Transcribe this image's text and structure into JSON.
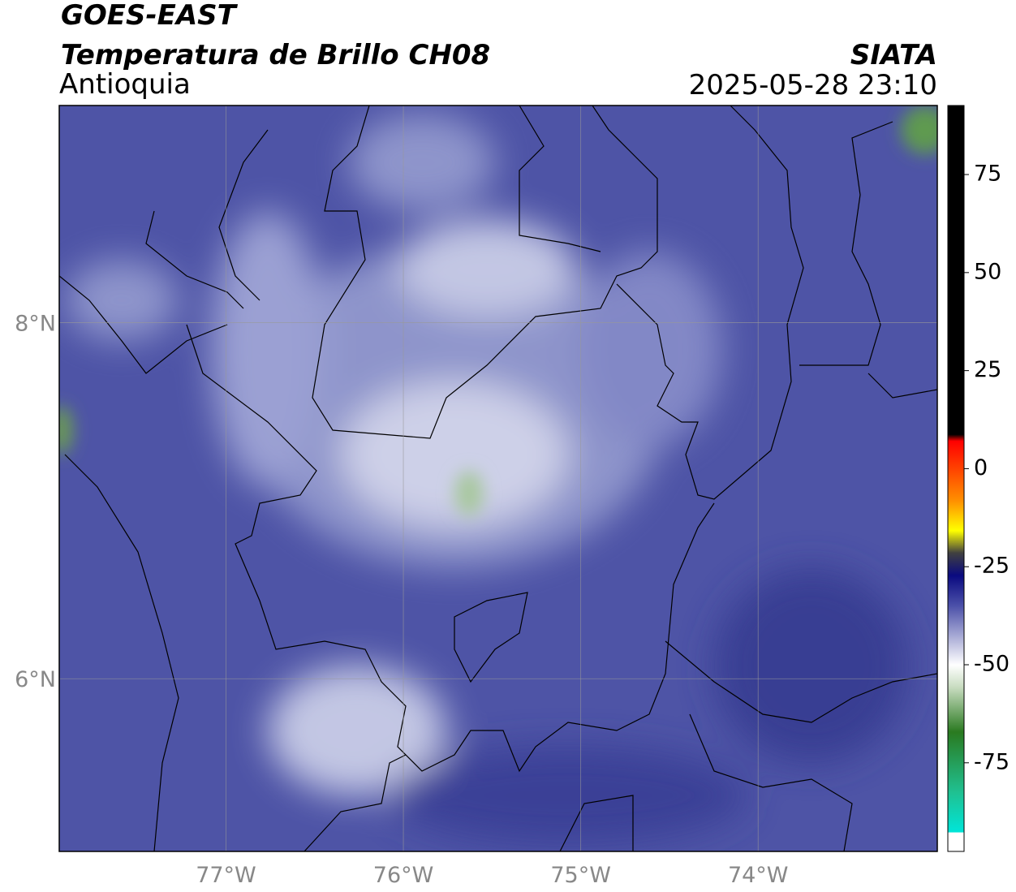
{
  "header": {
    "satellite": "GOES-EAST",
    "product": "Temperatura de Brillo CH08",
    "region": "Antioquia",
    "agency": "SIATA",
    "datetime": "2025-05-28 23:10"
  },
  "map": {
    "lonlim": [
      -77.94,
      -72.99
    ],
    "latlim": [
      5.03,
      9.22
    ],
    "lon_ticks": [
      {
        "value": -77,
        "label": "77°W"
      },
      {
        "value": -76,
        "label": "76°W"
      },
      {
        "value": -75,
        "label": "75°W"
      },
      {
        "value": -74,
        "label": "74°W"
      }
    ],
    "lat_ticks": [
      {
        "value": 8,
        "label": "8°N"
      },
      {
        "value": 6,
        "label": "6°N"
      }
    ]
  },
  "colorbar": {
    "lim": [
      -97.6,
      92.6
    ],
    "ticks": [
      75,
      50,
      25,
      0,
      -25,
      -50,
      -75
    ]
  }
}
